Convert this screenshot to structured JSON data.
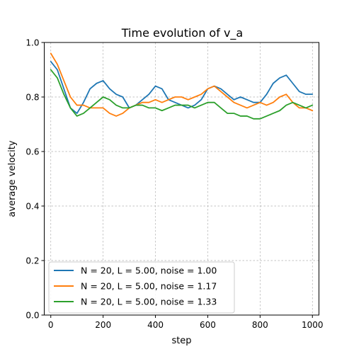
{
  "chart_data": {
    "type": "line",
    "title": "Time evolution of v_a",
    "xlabel": "step",
    "ylabel": "average velocity",
    "xlim": [
      -25,
      1025
    ],
    "ylim": [
      0.0,
      1.0
    ],
    "xticks": [
      0,
      200,
      400,
      600,
      800,
      1000
    ],
    "xtick_labels": [
      "0",
      "200",
      "400",
      "600",
      "800",
      "1000"
    ],
    "yticks": [
      0.0,
      0.2,
      0.4,
      0.6,
      0.8,
      1.0
    ],
    "ytick_labels": [
      "0.0",
      "0.2",
      "0.4",
      "0.6",
      "0.8",
      "1.0"
    ],
    "grid": true,
    "legend_position": "lower-left",
    "series": [
      {
        "name": "N = 20, L = 5.00, noise = 1.00",
        "color": "#1f77b4",
        "x": [
          0,
          25,
          50,
          75,
          100,
          125,
          150,
          175,
          200,
          225,
          250,
          275,
          300,
          325,
          350,
          375,
          400,
          425,
          450,
          475,
          500,
          525,
          550,
          575,
          600,
          625,
          650,
          675,
          700,
          725,
          750,
          775,
          800,
          825,
          850,
          875,
          900,
          925,
          950,
          975,
          1000
        ],
        "y": [
          0.93,
          0.9,
          0.83,
          0.76,
          0.74,
          0.78,
          0.83,
          0.85,
          0.86,
          0.83,
          0.81,
          0.8,
          0.76,
          0.77,
          0.79,
          0.81,
          0.84,
          0.83,
          0.79,
          0.78,
          0.77,
          0.76,
          0.77,
          0.79,
          0.83,
          0.84,
          0.83,
          0.81,
          0.79,
          0.8,
          0.79,
          0.78,
          0.78,
          0.81,
          0.85,
          0.87,
          0.88,
          0.85,
          0.82,
          0.81,
          0.81
        ]
      },
      {
        "name": "N = 20, L = 5.00, noise = 1.17",
        "color": "#ff7f0e",
        "x": [
          0,
          25,
          50,
          75,
          100,
          125,
          150,
          175,
          200,
          225,
          250,
          275,
          300,
          325,
          350,
          375,
          400,
          425,
          450,
          475,
          500,
          525,
          550,
          575,
          600,
          625,
          650,
          675,
          700,
          725,
          750,
          775,
          800,
          825,
          850,
          875,
          900,
          925,
          950,
          975,
          1000
        ],
        "y": [
          0.96,
          0.92,
          0.86,
          0.8,
          0.77,
          0.77,
          0.76,
          0.76,
          0.76,
          0.74,
          0.73,
          0.74,
          0.76,
          0.77,
          0.78,
          0.78,
          0.79,
          0.78,
          0.79,
          0.8,
          0.8,
          0.79,
          0.8,
          0.81,
          0.83,
          0.84,
          0.82,
          0.8,
          0.78,
          0.77,
          0.76,
          0.77,
          0.78,
          0.77,
          0.78,
          0.8,
          0.81,
          0.78,
          0.76,
          0.76,
          0.75
        ]
      },
      {
        "name": "N = 20, L = 5.00, noise = 1.33",
        "color": "#2ca02c",
        "x": [
          0,
          25,
          50,
          75,
          100,
          125,
          150,
          175,
          200,
          225,
          250,
          275,
          300,
          325,
          350,
          375,
          400,
          425,
          450,
          475,
          500,
          525,
          550,
          575,
          600,
          625,
          650,
          675,
          700,
          725,
          750,
          775,
          800,
          825,
          850,
          875,
          900,
          925,
          950,
          975,
          1000
        ],
        "y": [
          0.9,
          0.87,
          0.81,
          0.76,
          0.73,
          0.74,
          0.76,
          0.78,
          0.8,
          0.79,
          0.77,
          0.76,
          0.76,
          0.77,
          0.77,
          0.76,
          0.76,
          0.75,
          0.76,
          0.77,
          0.77,
          0.77,
          0.76,
          0.77,
          0.78,
          0.78,
          0.76,
          0.74,
          0.74,
          0.73,
          0.73,
          0.72,
          0.72,
          0.73,
          0.74,
          0.75,
          0.77,
          0.78,
          0.77,
          0.76,
          0.77
        ]
      }
    ]
  }
}
